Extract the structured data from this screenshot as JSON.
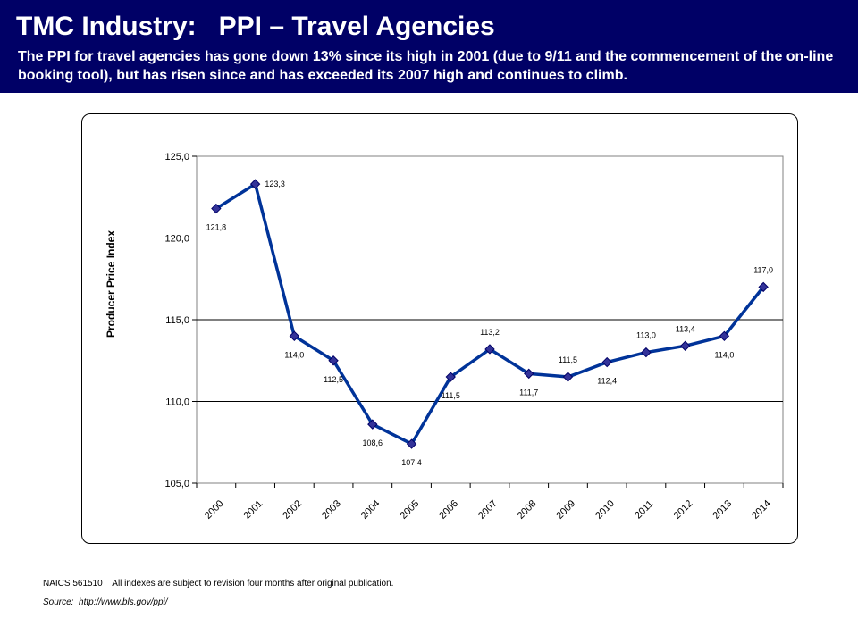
{
  "header": {
    "title": "TMC Industry:   PPI – Travel Agencies",
    "subtitle": "The PPI for travel agencies has gone down 13% since its high in 2001 (due to 9/11 and the commencement of the on-line booking tool), but has risen since and has exceeded  its 2007 high and continues to climb."
  },
  "colors": {
    "header_bg": "#000066",
    "line": "#003399",
    "marker": "#333399"
  },
  "chart_data": {
    "type": "line",
    "ylabel": "Producer Price Index",
    "xlabel": "",
    "ylim": [
      105.0,
      125.0
    ],
    "yticks": [
      "105,0",
      "110,0",
      "115,0",
      "120,0",
      "125,0"
    ],
    "grid": true,
    "categories": [
      "2000",
      "2001",
      "2002",
      "2003",
      "2004",
      "2005",
      "2006",
      "2007",
      "2008",
      "2009",
      "2010",
      "2011",
      "2012",
      "2013",
      "2014"
    ],
    "values": [
      121.8,
      123.3,
      114.0,
      112.5,
      108.6,
      107.4,
      111.5,
      113.2,
      111.7,
      111.5,
      112.4,
      113.0,
      113.4,
      114.0,
      117.0
    ],
    "data_labels": [
      "121,8",
      "123,3",
      "114,0",
      "112,5",
      "108,6",
      "107,4",
      "111,5",
      "113,2",
      "111,7",
      "111,5",
      "112,4",
      "113,0",
      "113,4",
      "114,0",
      "117,0"
    ]
  },
  "footer": {
    "note": "NAICS 561510    All indexes are subject to revision four months after original publication.",
    "source": "Source:  http://www.bls.gov/ppi/"
  }
}
